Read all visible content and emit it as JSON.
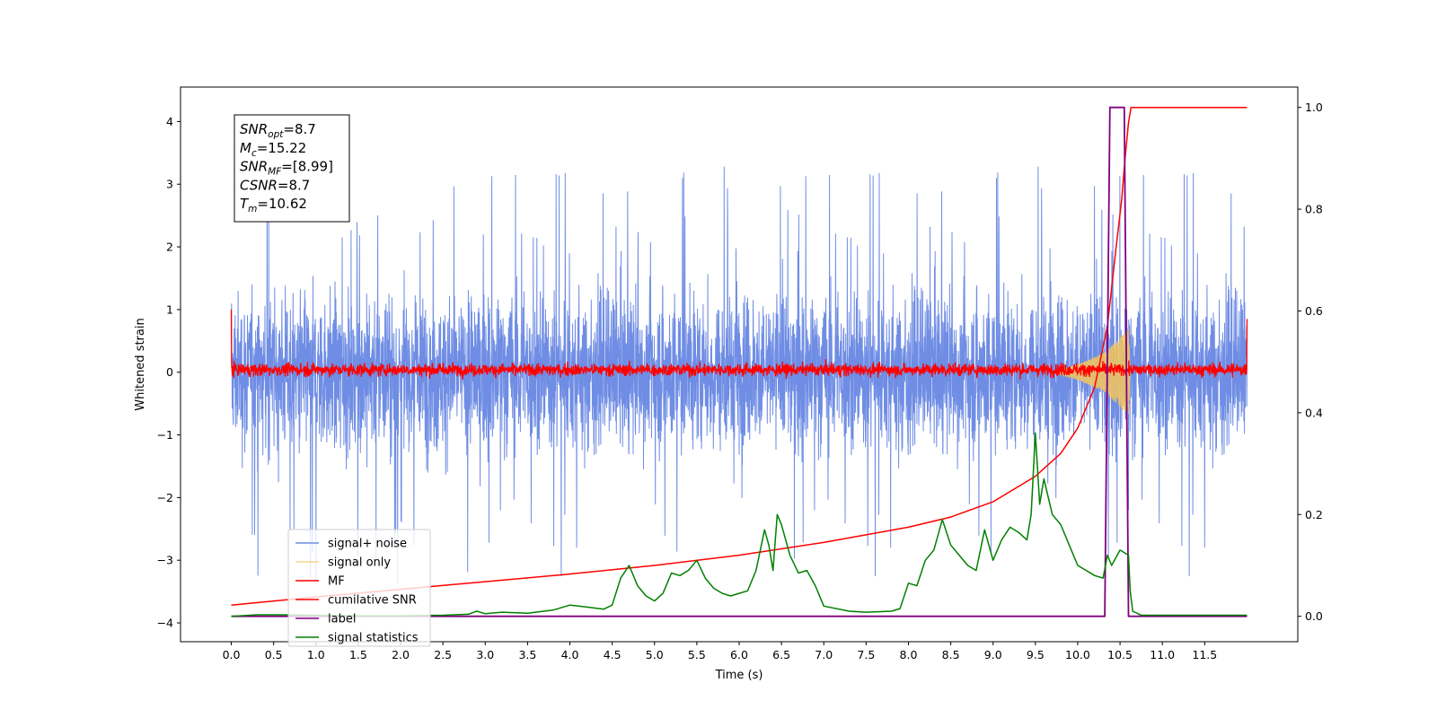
{
  "chart_data": {
    "type": "line",
    "xlabel": "Time (s)",
    "ylabel_left": "Whitened strain",
    "ylabel_right": "",
    "xlim": [
      -0.6,
      12.6
    ],
    "ylim_left": [
      -4.3,
      4.55
    ],
    "ylim_right": [
      -0.05,
      1.04
    ],
    "x_ticks": [
      0.0,
      0.5,
      1.0,
      1.5,
      2.0,
      2.5,
      3.0,
      3.5,
      4.0,
      4.5,
      5.0,
      5.5,
      6.0,
      6.5,
      7.0,
      7.5,
      8.0,
      8.5,
      9.0,
      9.5,
      10.0,
      10.5,
      11.0,
      11.5
    ],
    "x_tick_labels": [
      "0.0",
      "0.5",
      "1.0",
      "1.5",
      "2.0",
      "2.5",
      "3.0",
      "3.5",
      "4.0",
      "4.5",
      "5.0",
      "5.5",
      "6.0",
      "6.5",
      "7.0",
      "7.5",
      "8.0",
      "8.5",
      "9.0",
      "9.5",
      "10.0",
      "10.5",
      "11.0",
      "11.5"
    ],
    "y_left_ticks": [
      -4,
      -3,
      -2,
      -1,
      0,
      1,
      2,
      3,
      4
    ],
    "y_left_tick_labels": [
      "−4",
      "−3",
      "−2",
      "−1",
      "0",
      "1",
      "2",
      "3",
      "4"
    ],
    "y_right_ticks": [
      0.0,
      0.2,
      0.4,
      0.6,
      0.8,
      1.0
    ],
    "y_right_tick_labels": [
      "0.0",
      "0.2",
      "0.4",
      "0.6",
      "0.8",
      "1.0"
    ],
    "legend_position": "lower-left",
    "series": [
      {
        "name": "signal+ noise",
        "color": "#6f8de4",
        "axis": "left",
        "kind": "noise",
        "x_range": [
          0.0,
          12.0
        ],
        "y_range_approx": [
          -3.8,
          4.15
        ],
        "note": "dense whitened noise trace, typical amplitude about ±1.5"
      },
      {
        "name": "signal only",
        "color": "#f5c55c",
        "axis": "left",
        "kind": "chirp",
        "x_range": [
          9.7,
          10.62
        ],
        "envelope_points": [
          [
            9.7,
            0.0
          ],
          [
            10.0,
            0.12
          ],
          [
            10.3,
            0.3
          ],
          [
            10.5,
            0.55
          ],
          [
            10.6,
            0.7
          ],
          [
            10.62,
            0.0
          ]
        ]
      },
      {
        "name": "MF",
        "color": "#ff0000",
        "axis": "left",
        "kind": "noise",
        "x_range": [
          0.0,
          12.0
        ],
        "y_range_approx": [
          -0.15,
          0.3
        ],
        "end_points": [
          [
            0.0,
            1.0
          ],
          [
            12.0,
            0.85
          ]
        ]
      },
      {
        "name": "cumilative SNR",
        "color": "#ff0000",
        "axis": "right",
        "kind": "line",
        "points": [
          [
            0.0,
            0.022
          ],
          [
            1.0,
            0.038
          ],
          [
            2.0,
            0.053
          ],
          [
            3.0,
            0.068
          ],
          [
            4.0,
            0.083
          ],
          [
            5.0,
            0.1
          ],
          [
            6.0,
            0.12
          ],
          [
            7.0,
            0.145
          ],
          [
            8.0,
            0.175
          ],
          [
            8.5,
            0.195
          ],
          [
            9.0,
            0.225
          ],
          [
            9.5,
            0.275
          ],
          [
            9.8,
            0.32
          ],
          [
            10.0,
            0.37
          ],
          [
            10.2,
            0.45
          ],
          [
            10.35,
            0.57
          ],
          [
            10.45,
            0.72
          ],
          [
            10.52,
            0.82
          ],
          [
            10.56,
            0.9
          ],
          [
            10.6,
            0.97
          ],
          [
            10.63,
            1.0
          ],
          [
            12.0,
            1.0
          ]
        ]
      },
      {
        "name": "label",
        "color": "#800080",
        "axis": "right",
        "kind": "step",
        "points": [
          [
            0.0,
            0.0
          ],
          [
            10.32,
            0.0
          ],
          [
            10.38,
            1.0
          ],
          [
            10.55,
            1.0
          ],
          [
            10.6,
            0.0
          ],
          [
            12.0,
            0.0
          ]
        ]
      },
      {
        "name": "signal statistics",
        "color": "#008000",
        "axis": "right",
        "kind": "line",
        "points": [
          [
            0.0,
            0.0
          ],
          [
            0.3,
            0.003
          ],
          [
            0.6,
            0.003
          ],
          [
            1.0,
            0.002
          ],
          [
            1.5,
            0.001
          ],
          [
            2.0,
            0.001
          ],
          [
            2.5,
            0.002
          ],
          [
            2.8,
            0.004
          ],
          [
            2.9,
            0.01
          ],
          [
            3.0,
            0.005
          ],
          [
            3.2,
            0.008
          ],
          [
            3.5,
            0.006
          ],
          [
            3.8,
            0.012
          ],
          [
            4.0,
            0.022
          ],
          [
            4.2,
            0.018
          ],
          [
            4.4,
            0.014
          ],
          [
            4.5,
            0.022
          ],
          [
            4.6,
            0.075
          ],
          [
            4.7,
            0.1
          ],
          [
            4.8,
            0.06
          ],
          [
            4.9,
            0.04
          ],
          [
            5.0,
            0.03
          ],
          [
            5.1,
            0.045
          ],
          [
            5.2,
            0.085
          ],
          [
            5.3,
            0.08
          ],
          [
            5.4,
            0.09
          ],
          [
            5.5,
            0.11
          ],
          [
            5.6,
            0.075
          ],
          [
            5.7,
            0.055
          ],
          [
            5.8,
            0.045
          ],
          [
            5.9,
            0.04
          ],
          [
            6.0,
            0.045
          ],
          [
            6.1,
            0.05
          ],
          [
            6.2,
            0.09
          ],
          [
            6.3,
            0.17
          ],
          [
            6.35,
            0.14
          ],
          [
            6.4,
            0.09
          ],
          [
            6.45,
            0.2
          ],
          [
            6.5,
            0.18
          ],
          [
            6.6,
            0.12
          ],
          [
            6.7,
            0.085
          ],
          [
            6.8,
            0.09
          ],
          [
            6.9,
            0.06
          ],
          [
            7.0,
            0.02
          ],
          [
            7.3,
            0.01
          ],
          [
            7.5,
            0.008
          ],
          [
            7.8,
            0.01
          ],
          [
            7.9,
            0.015
          ],
          [
            8.0,
            0.065
          ],
          [
            8.1,
            0.06
          ],
          [
            8.2,
            0.11
          ],
          [
            8.3,
            0.13
          ],
          [
            8.4,
            0.19
          ],
          [
            8.5,
            0.14
          ],
          [
            8.6,
            0.12
          ],
          [
            8.7,
            0.1
          ],
          [
            8.8,
            0.09
          ],
          [
            8.9,
            0.17
          ],
          [
            9.0,
            0.11
          ],
          [
            9.1,
            0.15
          ],
          [
            9.2,
            0.175
          ],
          [
            9.3,
            0.165
          ],
          [
            9.4,
            0.15
          ],
          [
            9.45,
            0.2
          ],
          [
            9.5,
            0.36
          ],
          [
            9.55,
            0.22
          ],
          [
            9.6,
            0.27
          ],
          [
            9.7,
            0.2
          ],
          [
            9.8,
            0.18
          ],
          [
            9.9,
            0.14
          ],
          [
            10.0,
            0.1
          ],
          [
            10.1,
            0.09
          ],
          [
            10.2,
            0.08
          ],
          [
            10.3,
            0.075
          ],
          [
            10.35,
            0.12
          ],
          [
            10.4,
            0.1
          ],
          [
            10.5,
            0.13
          ],
          [
            10.6,
            0.12
          ],
          [
            10.62,
            0.05
          ],
          [
            10.65,
            0.01
          ],
          [
            10.75,
            0.002
          ],
          [
            12.0,
            0.002
          ]
        ]
      }
    ]
  },
  "annotation_box": {
    "lines": [
      {
        "symbol": "SNR",
        "subscript": "opt",
        "value": "=8.7"
      },
      {
        "symbol": "M",
        "subscript": "c",
        "value": "=15.22"
      },
      {
        "symbol": "SNR",
        "subscript": "MF",
        "value": "=[8.99]"
      },
      {
        "symbol": "CSNR",
        "subscript": "",
        "value": "=8.7"
      },
      {
        "symbol": "T",
        "subscript": "m",
        "value": "=10.62"
      }
    ]
  }
}
